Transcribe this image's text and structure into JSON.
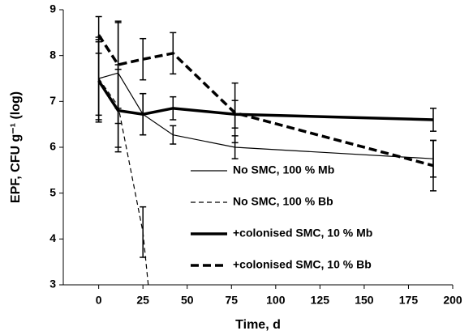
{
  "chart_data": {
    "type": "line",
    "x_label": "Time, d",
    "y_label": "EPF, CFU g⁻¹ (log)",
    "xlim": [
      -20,
      200
    ],
    "xticks": [
      0,
      25,
      50,
      75,
      100,
      125,
      150,
      175,
      200
    ],
    "ylim": [
      3,
      9
    ],
    "yticks": [
      3,
      4,
      5,
      6,
      7,
      8,
      9
    ],
    "series": [
      {
        "name": "No SMC, 100 % Mb",
        "color": "#000000",
        "width": 1.2,
        "dash": false,
        "x": [
          0,
          11,
          25,
          42,
          77,
          189
        ],
        "values": [
          7.5,
          7.62,
          6.72,
          6.27,
          6.0,
          5.75
        ],
        "errors": [
          0.8,
          1.1,
          0.45,
          0.2,
          0.25,
          0.4
        ]
      },
      {
        "name": "No SMC, 100 % Bb",
        "color": "#000000",
        "width": 1.2,
        "dash": true,
        "x": [
          0,
          11,
          25,
          28
        ],
        "values": [
          7.5,
          6.9,
          4.15,
          3.0
        ],
        "errors": [
          0.9,
          0.9,
          0.55,
          null
        ]
      },
      {
        "name": "+colonised SMC, 10 % Mb",
        "color": "#000000",
        "width": 3.5,
        "dash": false,
        "x": [
          0,
          11,
          25,
          42,
          77,
          189
        ],
        "values": [
          7.45,
          6.8,
          6.72,
          6.85,
          6.72,
          6.6
        ],
        "errors": [
          0.9,
          0.9,
          0.45,
          0.25,
          0.3,
          0.25
        ]
      },
      {
        "name": "+colonised SMC, 10 % Bb",
        "color": "#000000",
        "width": 3.5,
        "dash": true,
        "x": [
          0,
          11,
          25,
          42,
          77,
          189
        ],
        "values": [
          8.45,
          7.8,
          7.92,
          8.05,
          6.75,
          5.6
        ],
        "errors": [
          0.4,
          0.95,
          0.45,
          0.45,
          0.65,
          0.55
        ]
      }
    ]
  }
}
